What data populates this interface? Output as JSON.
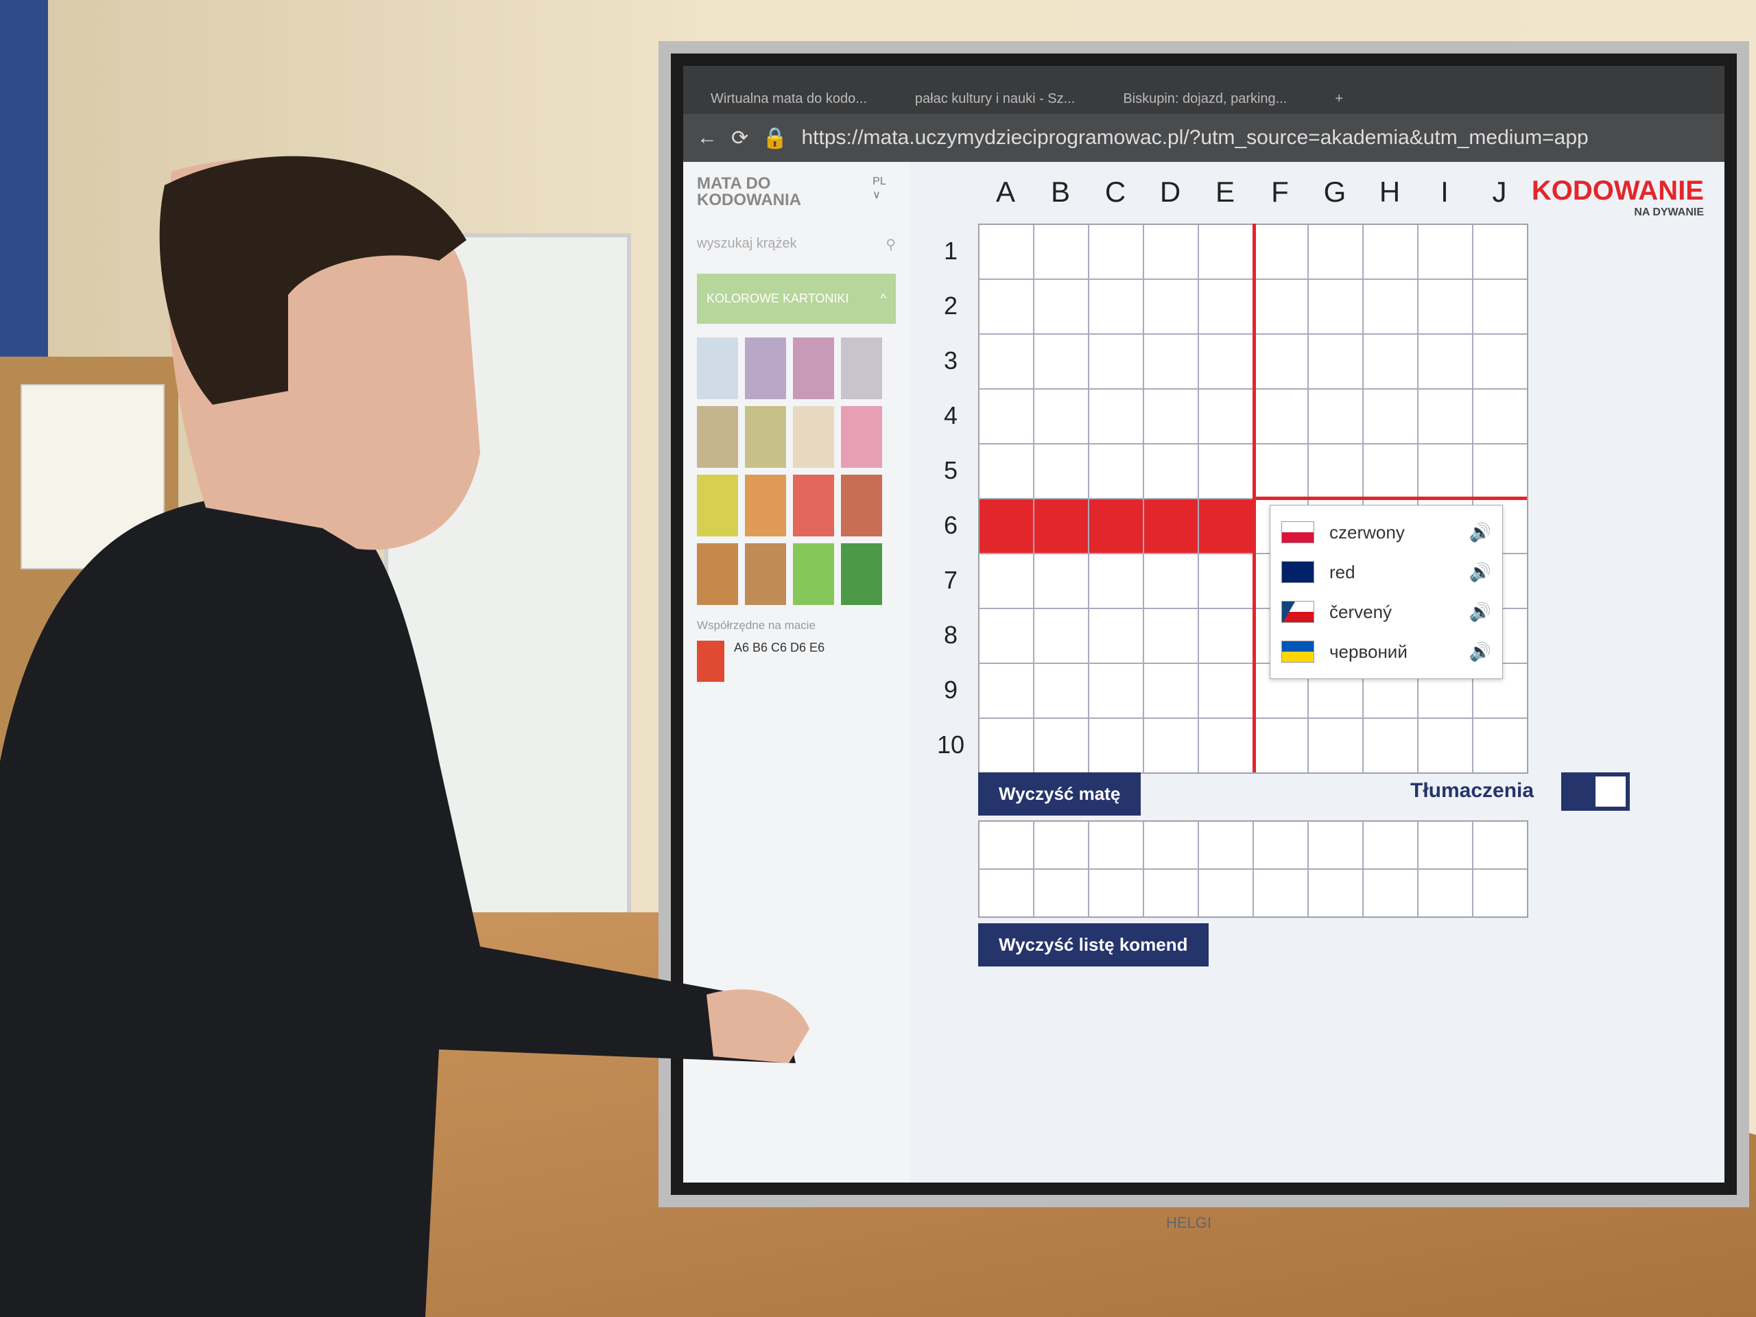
{
  "browser": {
    "tabs": [
      "Wirtualna mata do kodo...",
      "pałac kultury i nauki - Sz...",
      "Biskupin: dojazd, parking..."
    ],
    "new_tab": "+",
    "url": "https://mata.uczymydzieciprogramowac.pl/?utm_source=akademia&utm_medium=app"
  },
  "sidebar": {
    "logo": "MATA DO KODOWANIA",
    "language": "PL",
    "search_placeholder": "wyszukaj krążek",
    "section": "KOLOROWE KARTONIKI",
    "palette": [
      "#cfdbe6",
      "#b9a7c8",
      "#c99ab8",
      "#c9c3cb",
      "#c6b48f",
      "#c7c089",
      "#e7d9bf",
      "#e69fb5",
      "#d7cf4f",
      "#df9a55",
      "#e2665c",
      "#c86e54",
      "#c7894b",
      "#c08b56",
      "#86c75a",
      "#4c9a47"
    ],
    "coords_label": "Współrzędne na macie",
    "coords_color": "#e04a33",
    "coords": "A6 B6 C6 D6 E6"
  },
  "mat": {
    "columns": [
      "A",
      "B",
      "C",
      "D",
      "E",
      "F",
      "G",
      "H",
      "I",
      "J"
    ],
    "rows": [
      "1",
      "2",
      "3",
      "4",
      "5",
      "6",
      "7",
      "8",
      "9",
      "10"
    ],
    "highlight_color": "#e3262b",
    "filled_cells": [
      "A6",
      "B6",
      "C6",
      "D6",
      "E6"
    ]
  },
  "translations": [
    {
      "flag": "pl",
      "word": "czerwony"
    },
    {
      "flag": "gb",
      "word": "red"
    },
    {
      "flag": "cz",
      "word": "červený"
    },
    {
      "flag": "ua",
      "word": "червоний"
    }
  ],
  "buttons": {
    "clear_mat": "Wyczyść matę",
    "clear_commands": "Wyczyść listę komend"
  },
  "toggle": {
    "label": "Tłumaczenia",
    "on": true
  },
  "brand": {
    "name": "KODOWANIE",
    "tagline": "NA DYWANIE"
  },
  "device": "HELGI"
}
